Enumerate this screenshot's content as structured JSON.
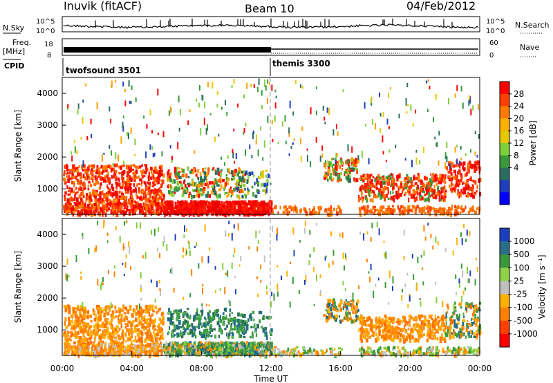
{
  "header": {
    "title_left": "Inuvik (fitACF)",
    "title_center": "Beam 10",
    "title_right": "04/Feb/2012"
  },
  "noise_panel": {
    "left_label": "N.Sky",
    "right_label": "N.Search",
    "left_ticks": [
      "10^5",
      "10^0"
    ],
    "right_ticks": [
      "10^5",
      "10^0"
    ]
  },
  "freq_panel": {
    "left_label_top": "Freq.",
    "left_label_unit": "[MHz]",
    "left_ticks": [
      "18",
      "8"
    ],
    "right_label": "Nave",
    "right_ticks": [
      "60",
      "0"
    ]
  },
  "cpid": {
    "label": "CPID",
    "segments": [
      {
        "name": "twofsound 3501",
        "start_hour": 0
      },
      {
        "name": "themis 3300",
        "start_hour": 12
      }
    ]
  },
  "chart_data": [
    {
      "type": "heatmap",
      "name": "power",
      "ylabel": "Slant Range [km]",
      "yticks": [
        1000,
        2000,
        3000,
        4000
      ],
      "ylim": [
        200,
        4500
      ],
      "xlim": [
        0,
        24
      ],
      "colorbar": {
        "label": "Power [dB]",
        "ticks": [
          "28",
          "24",
          "20",
          "16",
          "12",
          "8",
          "4"
        ],
        "colors": [
          "#ff0000",
          "#ff4000",
          "#ff7a00",
          "#ffb000",
          "#e8c800",
          "#7fcf3a",
          "#3a9a3a",
          "#2b6e60",
          "#1f3fbf",
          "#0000ff"
        ]
      }
    },
    {
      "type": "heatmap",
      "name": "velocity",
      "ylabel": "Slant Range [km]",
      "yticks": [
        1000,
        2000,
        3000,
        4000
      ],
      "ylim": [
        200,
        4500
      ],
      "xlim": [
        0,
        24
      ],
      "colorbar": {
        "label": "Velocity [m s⁻¹]",
        "ticks": [
          "1000",
          "500",
          "100",
          "25",
          "-25",
          "-100",
          "-500",
          "-1000"
        ],
        "colors": [
          "#1c3fbf",
          "#2a6e8a",
          "#3a9a3a",
          "#8ed24a",
          "#c0c0c0",
          "#ffb000",
          "#ff8000",
          "#ff4000",
          "#ff0000"
        ]
      }
    }
  ],
  "time_axis": {
    "label": "Time UT",
    "ticks": [
      "00:00",
      "04:00",
      "08:00",
      "12:00",
      "16:00",
      "20:00",
      "00:00"
    ]
  }
}
